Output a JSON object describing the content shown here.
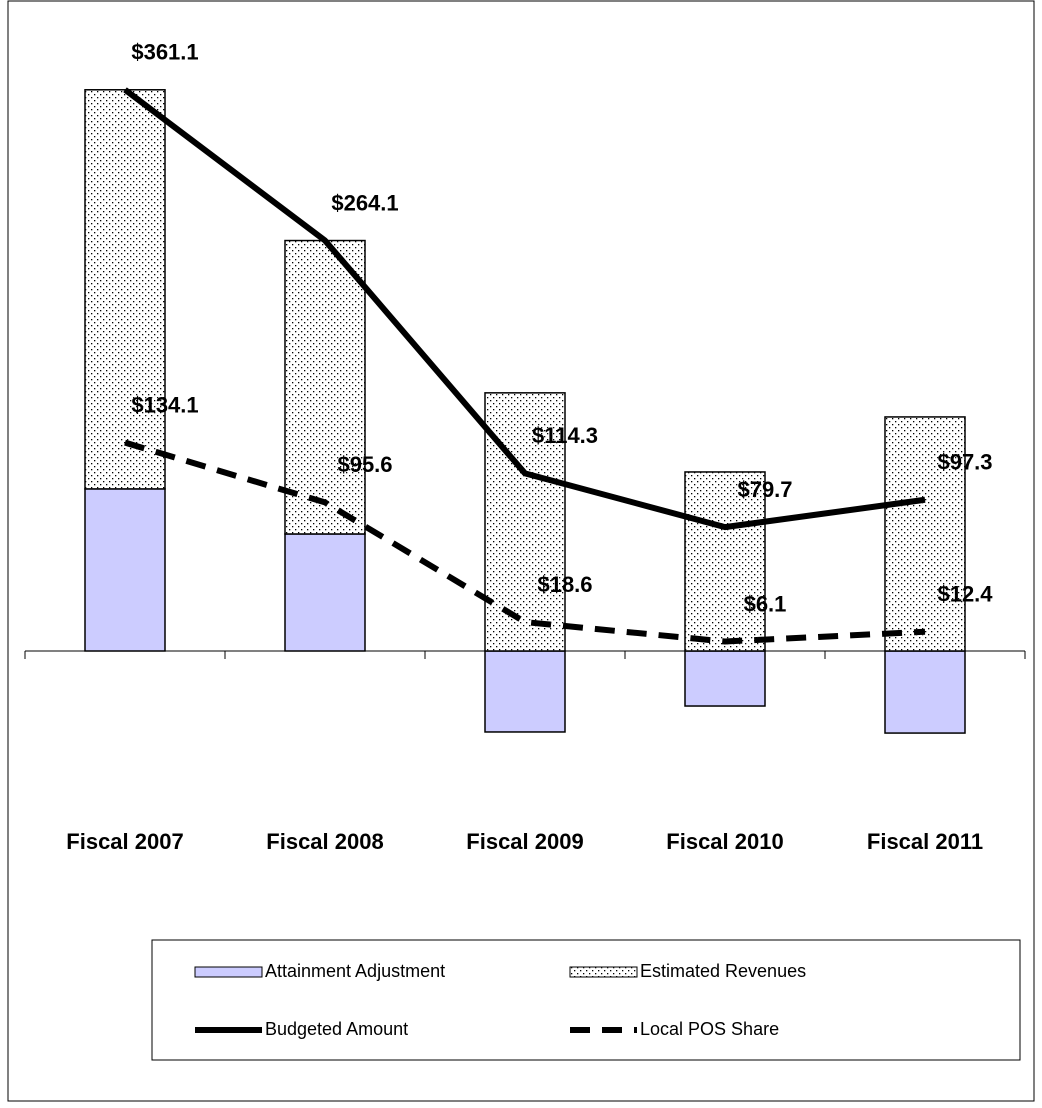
{
  "chart_data": {
    "type": "combo",
    "categories": [
      "Fiscal 2007",
      "Fiscal 2008",
      "Fiscal 2009",
      "Fiscal 2010",
      "Fiscal 2011"
    ],
    "ylim": [
      -83,
      406
    ],
    "stacked": true,
    "legend": "bottom",
    "series": [
      {
        "name": "Attainment Adjustment",
        "type": "bar",
        "color": "#ccccff",
        "values": [
          104.3,
          75.3,
          -52.1,
          -35.4,
          -52.8
        ]
      },
      {
        "name": "Estimated Revenues",
        "type": "bar",
        "color": "#ffffff",
        "pattern": "dots",
        "values": [
          256.8,
          188.8,
          166.1,
          115.2,
          150.6
        ]
      },
      {
        "name": "Budgeted Amount",
        "type": "line",
        "color": "#000000",
        "dash": "solid",
        "values": [
          361.1,
          264.1,
          114.3,
          79.7,
          97.3
        ],
        "value_labels": [
          "$361.1",
          "$264.1",
          "$114.3",
          "$79.7",
          "$97.3"
        ]
      },
      {
        "name": "Local POS Share",
        "type": "line",
        "color": "#000000",
        "dash": "dashed",
        "values": [
          134.1,
          95.6,
          18.6,
          6.1,
          12.4
        ],
        "value_labels": [
          "$134.1",
          "$95.6",
          "$18.6",
          "$6.1",
          "$12.4"
        ]
      }
    ]
  }
}
